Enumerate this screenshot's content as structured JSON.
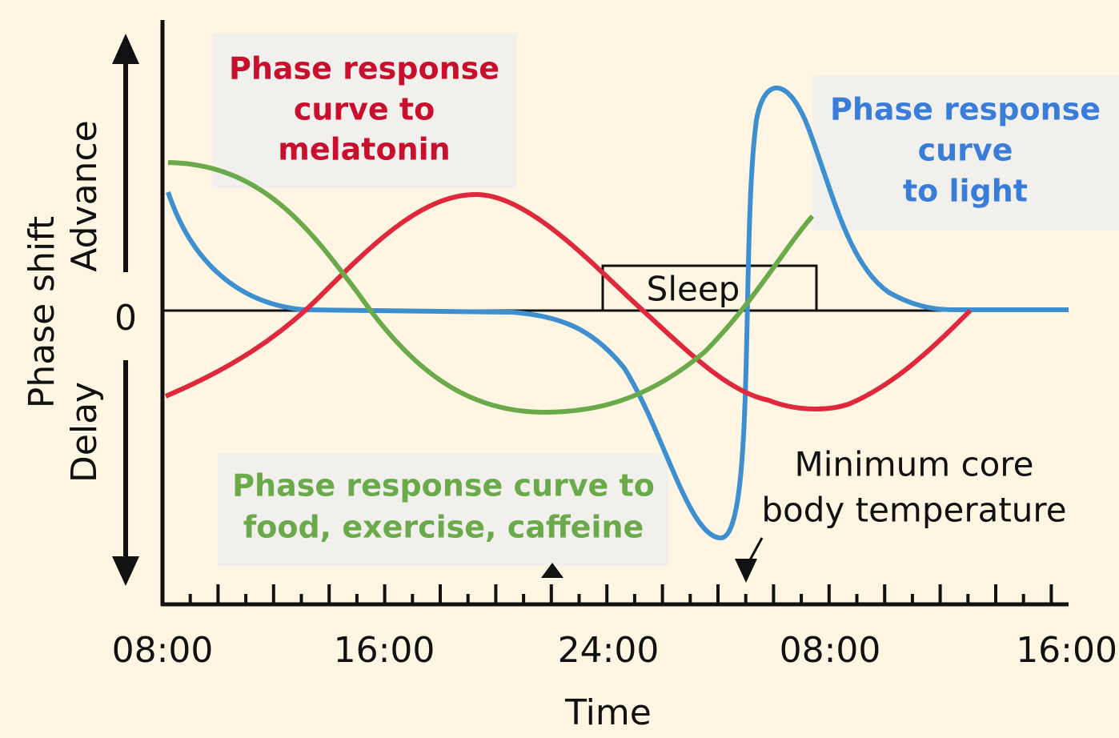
{
  "y_axis": {
    "title": "Phase shift",
    "advance": "Advance",
    "delay": "Delay",
    "zero": "0"
  },
  "x_axis": {
    "title": "Time",
    "ticks": [
      "08:00",
      "16:00",
      "24:00",
      "08:00",
      "16:00"
    ]
  },
  "sleep": "Sleep",
  "minimum_temperature": [
    "Minimum core",
    "body temperature"
  ],
  "labels": {
    "melatonin": [
      "Phase response",
      "curve to",
      "melatonin"
    ],
    "light": [
      "Phase response",
      "curve",
      "to light"
    ],
    "food": [
      "Phase response curve to",
      "food, exercise, caffeine"
    ]
  }
}
